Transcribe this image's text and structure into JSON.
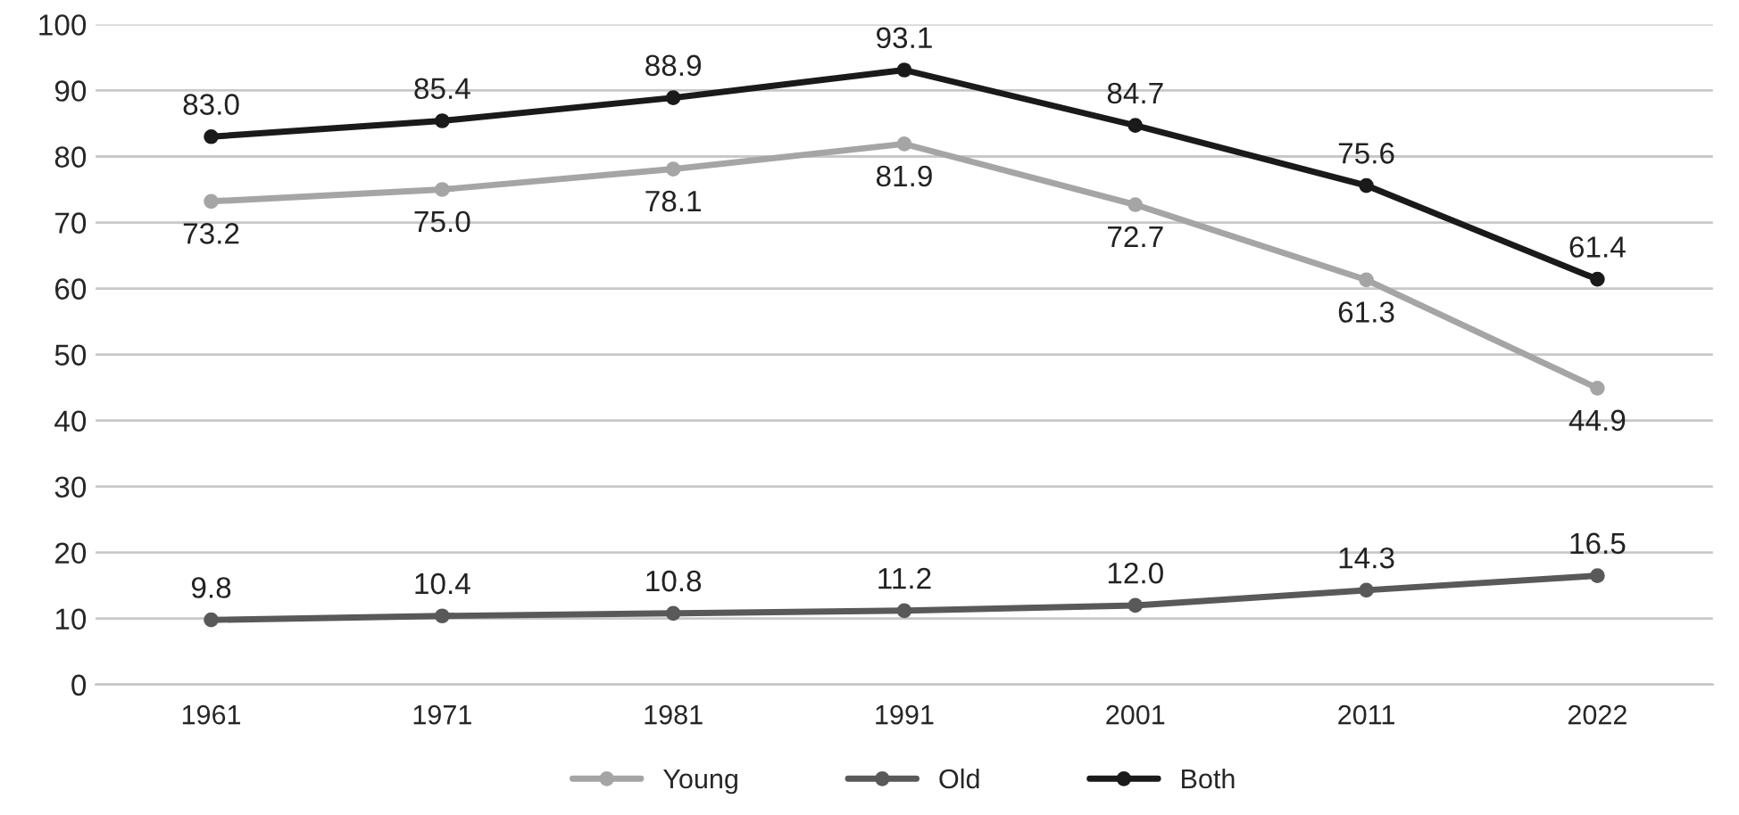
{
  "chart_data": {
    "type": "line",
    "categories": [
      "1961",
      "1971",
      "1981",
      "1991",
      "2001",
      "2011",
      "2022"
    ],
    "series": [
      {
        "name": "Young",
        "color": "#a5a5a5",
        "values": [
          73.2,
          75.0,
          78.1,
          81.9,
          72.7,
          61.3,
          44.9
        ],
        "value_labels": [
          "73.2",
          "75.0",
          "78.1",
          "81.9",
          "72.7",
          "61.3",
          "44.9"
        ]
      },
      {
        "name": "Old",
        "color": "#595959",
        "values": [
          9.8,
          10.4,
          10.8,
          11.2,
          12.0,
          14.3,
          16.5
        ],
        "value_labels": [
          "9.8",
          "10.4",
          "10.8",
          "11.2",
          "12.0",
          "14.3",
          "16.5"
        ]
      },
      {
        "name": "Both",
        "color": "#1a1a1a",
        "values": [
          83.0,
          85.4,
          88.9,
          93.1,
          84.7,
          75.6,
          61.4
        ],
        "value_labels": [
          "83.0",
          "85.4",
          "88.9",
          "93.1",
          "84.7",
          "75.6",
          "61.4"
        ]
      }
    ],
    "ylim": [
      0,
      100
    ],
    "yticks": [
      0,
      10,
      20,
      30,
      40,
      50,
      60,
      70,
      80,
      90,
      100
    ],
    "grid": "y",
    "legend": "bottom",
    "marker": "circle",
    "line_style": "solid"
  }
}
